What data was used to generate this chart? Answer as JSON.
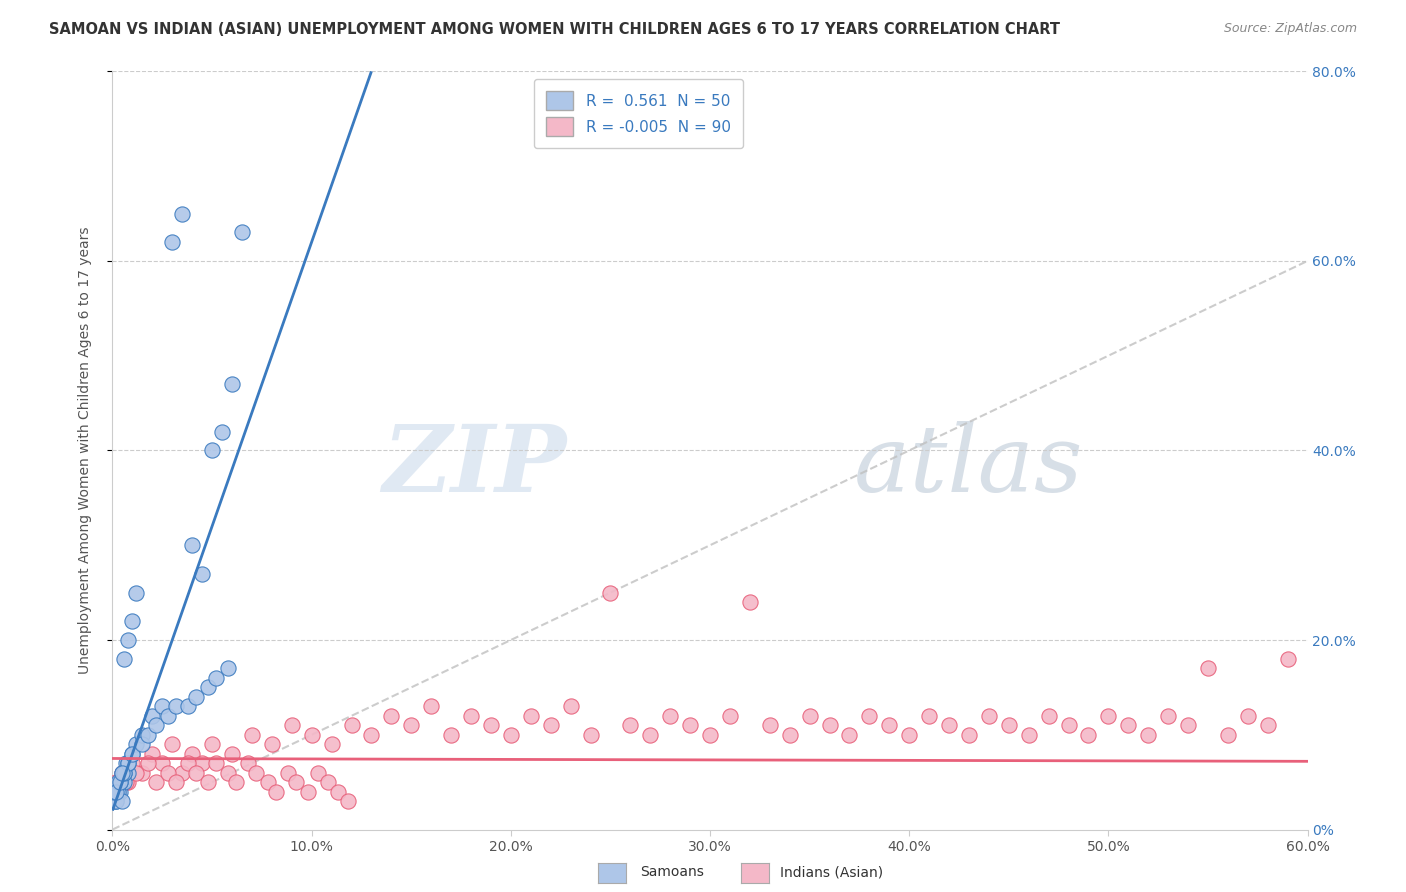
{
  "title": "SAMOAN VS INDIAN (ASIAN) UNEMPLOYMENT AMONG WOMEN WITH CHILDREN AGES 6 TO 17 YEARS CORRELATION CHART",
  "source": "Source: ZipAtlas.com",
  "ylabel": "Unemployment Among Women with Children Ages 6 to 17 years",
  "xlim": [
    0.0,
    0.6
  ],
  "ylim": [
    0.0,
    0.8
  ],
  "x_tick_labels": [
    "0.0%",
    "10.0%",
    "20.0%",
    "30.0%",
    "40.0%",
    "50.0%",
    "60.0%"
  ],
  "x_tick_vals": [
    0.0,
    0.1,
    0.2,
    0.3,
    0.4,
    0.5,
    0.6
  ],
  "y_right_labels": [
    "0%",
    "20.0%",
    "40.0%",
    "60.0%",
    "80.0%"
  ],
  "y_tick_vals": [
    0.0,
    0.2,
    0.4,
    0.6,
    0.8
  ],
  "legend_R_samoan": " 0.561",
  "legend_N_samoan": "50",
  "legend_R_indian": "-0.005",
  "legend_N_indian": "90",
  "samoan_color": "#aec6e8",
  "indian_color": "#f4b8c8",
  "samoan_line_color": "#3a7abf",
  "indian_line_color": "#e8607a",
  "ref_line_color": "#c0c0c0",
  "watermark_zip": "ZIP",
  "watermark_atlas": "atlas",
  "background_color": "#ffffff",
  "samoan_x": [
    0.003,
    0.005,
    0.002,
    0.008,
    0.004,
    0.006,
    0.001,
    0.007,
    0.003,
    0.005,
    0.002,
    0.004,
    0.006,
    0.001,
    0.003,
    0.005,
    0.002,
    0.008,
    0.004,
    0.006,
    0.01,
    0.012,
    0.008,
    0.015,
    0.01,
    0.005,
    0.02,
    0.015,
    0.025,
    0.018,
    0.03,
    0.022,
    0.035,
    0.028,
    0.04,
    0.032,
    0.045,
    0.038,
    0.05,
    0.042,
    0.055,
    0.048,
    0.06,
    0.052,
    0.065,
    0.058,
    0.012,
    0.008,
    0.01,
    0.006
  ],
  "samoan_y": [
    0.04,
    0.05,
    0.03,
    0.06,
    0.04,
    0.05,
    0.03,
    0.07,
    0.04,
    0.06,
    0.03,
    0.05,
    0.06,
    0.04,
    0.05,
    0.03,
    0.04,
    0.07,
    0.05,
    0.06,
    0.08,
    0.09,
    0.07,
    0.1,
    0.08,
    0.06,
    0.12,
    0.09,
    0.13,
    0.1,
    0.62,
    0.11,
    0.65,
    0.12,
    0.3,
    0.13,
    0.27,
    0.13,
    0.4,
    0.14,
    0.42,
    0.15,
    0.47,
    0.16,
    0.63,
    0.17,
    0.25,
    0.2,
    0.22,
    0.18
  ],
  "indian_x": [
    0.002,
    0.005,
    0.008,
    0.01,
    0.015,
    0.02,
    0.025,
    0.03,
    0.035,
    0.04,
    0.045,
    0.05,
    0.06,
    0.07,
    0.08,
    0.09,
    0.1,
    0.11,
    0.12,
    0.13,
    0.14,
    0.15,
    0.16,
    0.17,
    0.18,
    0.19,
    0.2,
    0.21,
    0.22,
    0.23,
    0.24,
    0.25,
    0.26,
    0.27,
    0.28,
    0.29,
    0.3,
    0.31,
    0.32,
    0.33,
    0.34,
    0.35,
    0.36,
    0.37,
    0.38,
    0.39,
    0.4,
    0.41,
    0.42,
    0.43,
    0.44,
    0.45,
    0.46,
    0.47,
    0.48,
    0.49,
    0.5,
    0.51,
    0.52,
    0.53,
    0.54,
    0.55,
    0.56,
    0.57,
    0.58,
    0.59,
    0.003,
    0.007,
    0.012,
    0.018,
    0.022,
    0.028,
    0.032,
    0.038,
    0.042,
    0.048,
    0.052,
    0.058,
    0.062,
    0.068,
    0.072,
    0.078,
    0.082,
    0.088,
    0.092,
    0.098,
    0.103,
    0.108,
    0.113,
    0.118
  ],
  "indian_y": [
    0.05,
    0.06,
    0.05,
    0.07,
    0.06,
    0.08,
    0.07,
    0.09,
    0.06,
    0.08,
    0.07,
    0.09,
    0.08,
    0.1,
    0.09,
    0.11,
    0.1,
    0.09,
    0.11,
    0.1,
    0.12,
    0.11,
    0.13,
    0.1,
    0.12,
    0.11,
    0.1,
    0.12,
    0.11,
    0.13,
    0.1,
    0.25,
    0.11,
    0.1,
    0.12,
    0.11,
    0.1,
    0.12,
    0.24,
    0.11,
    0.1,
    0.12,
    0.11,
    0.1,
    0.12,
    0.11,
    0.1,
    0.12,
    0.11,
    0.1,
    0.12,
    0.11,
    0.1,
    0.12,
    0.11,
    0.1,
    0.12,
    0.11,
    0.1,
    0.12,
    0.11,
    0.17,
    0.1,
    0.12,
    0.11,
    0.18,
    0.04,
    0.05,
    0.06,
    0.07,
    0.05,
    0.06,
    0.05,
    0.07,
    0.06,
    0.05,
    0.07,
    0.06,
    0.05,
    0.07,
    0.06,
    0.05,
    0.04,
    0.06,
    0.05,
    0.04,
    0.06,
    0.05,
    0.04,
    0.03
  ]
}
